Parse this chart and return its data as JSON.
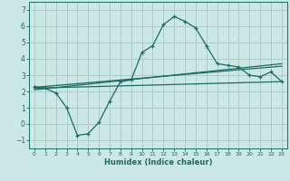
{
  "title": "",
  "xlabel": "Humidex (Indice chaleur)",
  "bg_color": "#cce8e4",
  "grid_color": "#aaccca",
  "line_color": "#1a6b60",
  "xlim": [
    -0.5,
    23.5
  ],
  "ylim": [
    -1.5,
    7.5
  ],
  "yticks": [
    -1,
    0,
    1,
    2,
    3,
    4,
    5,
    6,
    7
  ],
  "xticks": [
    0,
    1,
    2,
    3,
    4,
    5,
    6,
    7,
    8,
    9,
    10,
    11,
    12,
    13,
    14,
    15,
    16,
    17,
    18,
    19,
    20,
    21,
    22,
    23
  ],
  "series1_x": [
    0,
    1,
    2,
    3,
    4,
    5,
    6,
    7,
    8,
    9,
    10,
    11,
    12,
    13,
    14,
    15,
    16,
    17,
    18,
    19,
    20,
    21,
    22,
    23
  ],
  "series1_y": [
    2.3,
    2.2,
    1.9,
    1.0,
    -0.7,
    -0.6,
    0.1,
    1.4,
    2.6,
    2.7,
    4.4,
    4.8,
    6.1,
    6.6,
    6.3,
    5.9,
    4.8,
    3.7,
    3.6,
    3.5,
    3.0,
    2.9,
    3.2,
    2.6
  ],
  "series2_x": [
    0,
    23
  ],
  "series2_y": [
    2.2,
    2.6
  ],
  "series3_x": [
    0,
    23
  ],
  "series3_y": [
    2.1,
    3.7
  ],
  "series4_x": [
    0,
    23
  ],
  "series4_y": [
    2.25,
    3.55
  ]
}
